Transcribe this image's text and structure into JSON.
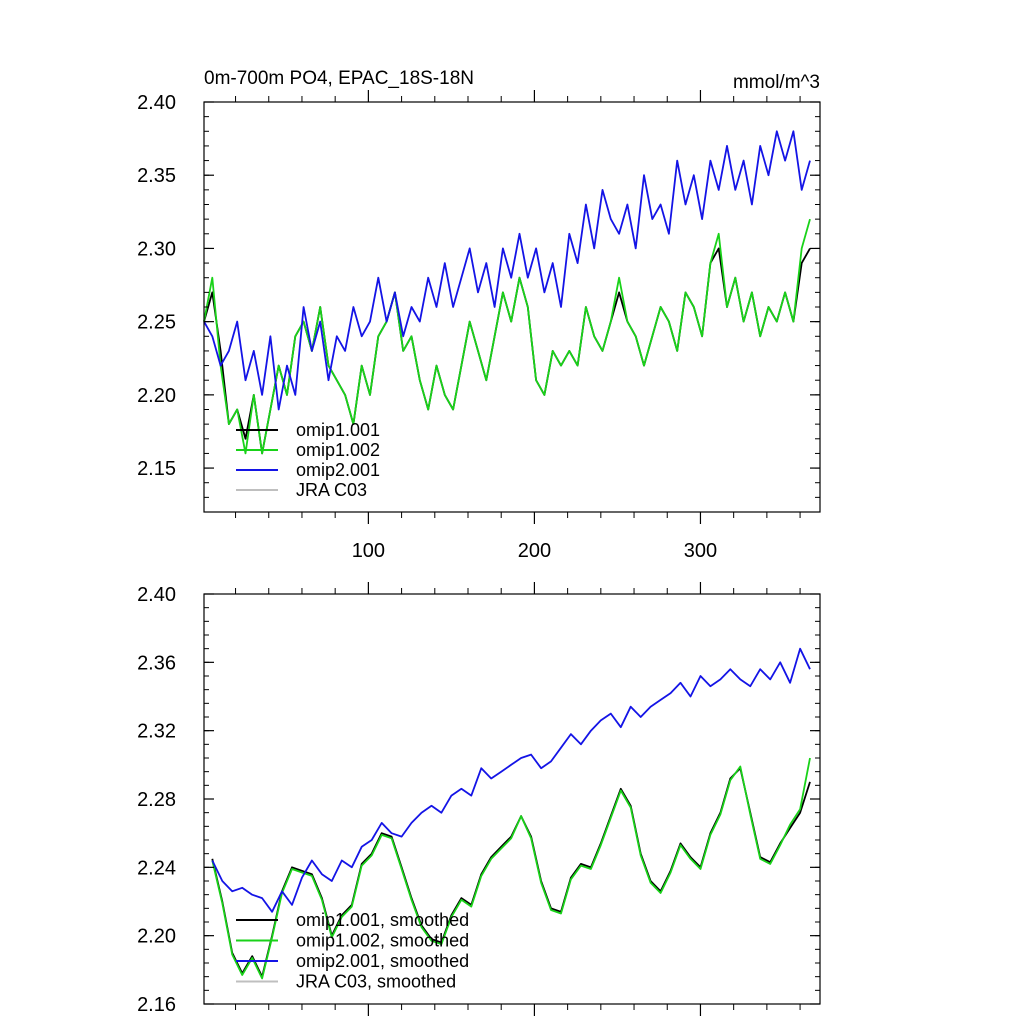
{
  "colors": {
    "omip1_001": "#000000",
    "omip1_002": "#19d219",
    "omip2_001": "#1414e6",
    "jra_c03": "#bfbfbf",
    "axis": "#000000"
  },
  "chart_data": [
    {
      "type": "line",
      "title": "0m-700m PO4, EPAC_18S-18N",
      "units": "mmol/m^3",
      "xlim": [
        1,
        372
      ],
      "ylim": [
        2.12,
        2.4
      ],
      "xticks": [
        100,
        200,
        300
      ],
      "xtick_labels": [
        "100",
        "200",
        "300"
      ],
      "yticks": [
        2.15,
        2.2,
        2.25,
        2.3,
        2.35,
        2.4
      ],
      "ytick_labels": [
        "2.15",
        "2.20",
        "2.25",
        "2.30",
        "2.35",
        "2.40"
      ],
      "legend_position": "bottom-left",
      "series": [
        {
          "key": "omip1_001",
          "name": "omip1.001",
          "x": [
            1,
            6,
            11,
            16,
            21,
            26,
            31,
            36,
            41,
            46,
            51,
            56,
            61,
            66,
            71,
            76,
            81,
            86,
            91,
            96,
            101,
            106,
            111,
            116,
            121,
            126,
            131,
            136,
            141,
            146,
            151,
            156,
            161,
            166,
            171,
            176,
            181,
            186,
            191,
            196,
            201,
            206,
            211,
            216,
            221,
            226,
            231,
            236,
            241,
            246,
            251,
            256,
            261,
            266,
            271,
            276,
            281,
            286,
            291,
            296,
            301,
            306,
            311,
            316,
            321,
            326,
            331,
            336,
            341,
            346,
            351,
            356,
            361,
            366
          ],
          "values": [
            2.25,
            2.27,
            2.23,
            2.18,
            2.19,
            2.17,
            2.2,
            2.16,
            2.19,
            2.22,
            2.2,
            2.24,
            2.25,
            2.23,
            2.26,
            2.22,
            2.21,
            2.2,
            2.18,
            2.22,
            2.2,
            2.24,
            2.25,
            2.27,
            2.23,
            2.24,
            2.21,
            2.19,
            2.22,
            2.2,
            2.19,
            2.22,
            2.25,
            2.23,
            2.21,
            2.24,
            2.27,
            2.25,
            2.28,
            2.26,
            2.21,
            2.2,
            2.23,
            2.22,
            2.23,
            2.22,
            2.26,
            2.24,
            2.23,
            2.25,
            2.27,
            2.25,
            2.24,
            2.22,
            2.24,
            2.26,
            2.25,
            2.23,
            2.27,
            2.26,
            2.24,
            2.29,
            2.3,
            2.26,
            2.28,
            2.25,
            2.27,
            2.24,
            2.26,
            2.25,
            2.27,
            2.25,
            2.29,
            2.3
          ]
        },
        {
          "key": "omip1_002",
          "name": "omip1.002",
          "x": [
            1,
            6,
            11,
            16,
            21,
            26,
            31,
            36,
            41,
            46,
            51,
            56,
            61,
            66,
            71,
            76,
            81,
            86,
            91,
            96,
            101,
            106,
            111,
            116,
            121,
            126,
            131,
            136,
            141,
            146,
            151,
            156,
            161,
            166,
            171,
            176,
            181,
            186,
            191,
            196,
            201,
            206,
            211,
            216,
            221,
            226,
            231,
            236,
            241,
            246,
            251,
            256,
            261,
            266,
            271,
            276,
            281,
            286,
            291,
            296,
            301,
            306,
            311,
            316,
            321,
            326,
            331,
            336,
            341,
            346,
            351,
            356,
            361,
            366
          ],
          "values": [
            2.25,
            2.28,
            2.22,
            2.18,
            2.19,
            2.16,
            2.2,
            2.16,
            2.19,
            2.22,
            2.2,
            2.24,
            2.25,
            2.23,
            2.26,
            2.22,
            2.21,
            2.2,
            2.18,
            2.22,
            2.2,
            2.24,
            2.25,
            2.27,
            2.23,
            2.24,
            2.21,
            2.19,
            2.22,
            2.2,
            2.19,
            2.22,
            2.25,
            2.23,
            2.21,
            2.24,
            2.27,
            2.25,
            2.28,
            2.26,
            2.21,
            2.2,
            2.23,
            2.22,
            2.23,
            2.22,
            2.26,
            2.24,
            2.23,
            2.25,
            2.28,
            2.25,
            2.24,
            2.22,
            2.24,
            2.26,
            2.25,
            2.23,
            2.27,
            2.26,
            2.24,
            2.29,
            2.31,
            2.26,
            2.28,
            2.25,
            2.27,
            2.24,
            2.26,
            2.25,
            2.27,
            2.25,
            2.3,
            2.32
          ]
        },
        {
          "key": "omip2_001",
          "name": "omip2.001",
          "x": [
            1,
            6,
            11,
            16,
            21,
            26,
            31,
            36,
            41,
            46,
            51,
            56,
            61,
            66,
            71,
            76,
            81,
            86,
            91,
            96,
            101,
            106,
            111,
            116,
            121,
            126,
            131,
            136,
            141,
            146,
            151,
            156,
            161,
            166,
            171,
            176,
            181,
            186,
            191,
            196,
            201,
            206,
            211,
            216,
            221,
            226,
            231,
            236,
            241,
            246,
            251,
            256,
            261,
            266,
            271,
            276,
            281,
            286,
            291,
            296,
            301,
            306,
            311,
            316,
            321,
            326,
            331,
            336,
            341,
            346,
            351,
            356,
            361,
            366
          ],
          "values": [
            2.25,
            2.24,
            2.22,
            2.23,
            2.25,
            2.21,
            2.23,
            2.2,
            2.24,
            2.19,
            2.22,
            2.2,
            2.26,
            2.23,
            2.25,
            2.21,
            2.24,
            2.23,
            2.26,
            2.24,
            2.25,
            2.28,
            2.25,
            2.27,
            2.24,
            2.26,
            2.25,
            2.28,
            2.26,
            2.29,
            2.26,
            2.28,
            2.3,
            2.27,
            2.29,
            2.26,
            2.3,
            2.28,
            2.31,
            2.28,
            2.3,
            2.27,
            2.29,
            2.26,
            2.31,
            2.29,
            2.33,
            2.3,
            2.34,
            2.32,
            2.31,
            2.33,
            2.3,
            2.35,
            2.32,
            2.33,
            2.31,
            2.36,
            2.33,
            2.35,
            2.32,
            2.36,
            2.34,
            2.37,
            2.34,
            2.36,
            2.33,
            2.37,
            2.35,
            2.38,
            2.36,
            2.38,
            2.34,
            2.36
          ]
        },
        {
          "key": "jra_c03",
          "name": "JRA C03",
          "x": [],
          "values": []
        }
      ]
    },
    {
      "type": "line",
      "title": "",
      "units": "",
      "xlim": [
        1,
        372
      ],
      "ylim": [
        2.16,
        2.4
      ],
      "xticks": [
        100,
        200,
        300
      ],
      "xtick_labels": [
        "",
        "",
        ""
      ],
      "yticks": [
        2.16,
        2.2,
        2.24,
        2.28,
        2.32,
        2.36,
        2.4
      ],
      "ytick_labels": [
        "2.16",
        "2.20",
        "2.24",
        "2.28",
        "2.32",
        "2.36",
        "2.40"
      ],
      "legend_position": "bottom-left",
      "series": [
        {
          "key": "omip1_001",
          "name": "omip1.001, smoothed",
          "x": [
            6,
            12,
            18,
            24,
            30,
            36,
            42,
            48,
            54,
            60,
            66,
            72,
            78,
            84,
            90,
            96,
            102,
            108,
            114,
            120,
            126,
            132,
            138,
            144,
            150,
            156,
            162,
            168,
            174,
            180,
            186,
            192,
            198,
            204,
            210,
            216,
            222,
            228,
            234,
            240,
            246,
            252,
            258,
            264,
            270,
            276,
            282,
            288,
            294,
            300,
            306,
            312,
            318,
            324,
            330,
            336,
            342,
            348,
            354,
            360,
            366
          ],
          "values": [
            2.245,
            2.22,
            2.19,
            2.178,
            2.188,
            2.176,
            2.2,
            2.226,
            2.24,
            2.238,
            2.236,
            2.222,
            2.2,
            2.212,
            2.218,
            2.242,
            2.248,
            2.26,
            2.258,
            2.24,
            2.222,
            2.206,
            2.198,
            2.196,
            2.212,
            2.222,
            2.218,
            2.236,
            2.246,
            2.252,
            2.258,
            2.27,
            2.258,
            2.232,
            2.216,
            2.214,
            2.234,
            2.242,
            2.24,
            2.254,
            2.27,
            2.286,
            2.276,
            2.248,
            2.232,
            2.226,
            2.238,
            2.254,
            2.246,
            2.24,
            2.26,
            2.272,
            2.292,
            2.298,
            2.272,
            2.246,
            2.243,
            2.254,
            2.263,
            2.272,
            2.29
          ]
        },
        {
          "key": "omip1_002",
          "name": "omip1.002, smoothed",
          "x": [
            6,
            12,
            18,
            24,
            30,
            36,
            42,
            48,
            54,
            60,
            66,
            72,
            78,
            84,
            90,
            96,
            102,
            108,
            114,
            120,
            126,
            132,
            138,
            144,
            150,
            156,
            162,
            168,
            174,
            180,
            186,
            192,
            198,
            204,
            210,
            216,
            222,
            228,
            234,
            240,
            246,
            252,
            258,
            264,
            270,
            276,
            282,
            288,
            294,
            300,
            306,
            312,
            318,
            324,
            330,
            336,
            342,
            348,
            354,
            360,
            366
          ],
          "values": [
            2.244,
            2.219,
            2.189,
            2.177,
            2.187,
            2.175,
            2.199,
            2.225,
            2.239,
            2.237,
            2.235,
            2.221,
            2.199,
            2.211,
            2.217,
            2.241,
            2.247,
            2.259,
            2.257,
            2.239,
            2.221,
            2.205,
            2.197,
            2.195,
            2.211,
            2.221,
            2.217,
            2.235,
            2.245,
            2.251,
            2.257,
            2.27,
            2.257,
            2.231,
            2.215,
            2.213,
            2.233,
            2.241,
            2.239,
            2.253,
            2.269,
            2.285,
            2.275,
            2.247,
            2.231,
            2.225,
            2.237,
            2.253,
            2.245,
            2.239,
            2.259,
            2.271,
            2.291,
            2.299,
            2.271,
            2.245,
            2.242,
            2.253,
            2.265,
            2.274,
            2.304
          ]
        },
        {
          "key": "omip2_001",
          "name": "omip2.001, smoothed",
          "x": [
            6,
            12,
            18,
            24,
            30,
            36,
            42,
            48,
            54,
            60,
            66,
            72,
            78,
            84,
            90,
            96,
            102,
            108,
            114,
            120,
            126,
            132,
            138,
            144,
            150,
            156,
            162,
            168,
            174,
            180,
            186,
            192,
            198,
            204,
            210,
            216,
            222,
            228,
            234,
            240,
            246,
            252,
            258,
            264,
            270,
            276,
            282,
            288,
            294,
            300,
            306,
            312,
            318,
            324,
            330,
            336,
            342,
            348,
            354,
            360,
            366
          ],
          "values": [
            2.244,
            2.232,
            2.226,
            2.228,
            2.224,
            2.222,
            2.214,
            2.226,
            2.218,
            2.234,
            2.244,
            2.236,
            2.232,
            2.244,
            2.24,
            2.252,
            2.256,
            2.266,
            2.26,
            2.258,
            2.266,
            2.272,
            2.276,
            2.272,
            2.282,
            2.286,
            2.282,
            2.298,
            2.292,
            2.296,
            2.3,
            2.304,
            2.306,
            2.298,
            2.302,
            2.31,
            2.318,
            2.312,
            2.32,
            2.326,
            2.33,
            2.322,
            2.334,
            2.328,
            2.334,
            2.338,
            2.342,
            2.348,
            2.34,
            2.352,
            2.346,
            2.35,
            2.356,
            2.35,
            2.346,
            2.356,
            2.35,
            2.36,
            2.348,
            2.368,
            2.356
          ]
        },
        {
          "key": "jra_c03",
          "name": "JRA C03, smoothed",
          "x": [],
          "values": []
        }
      ]
    }
  ]
}
